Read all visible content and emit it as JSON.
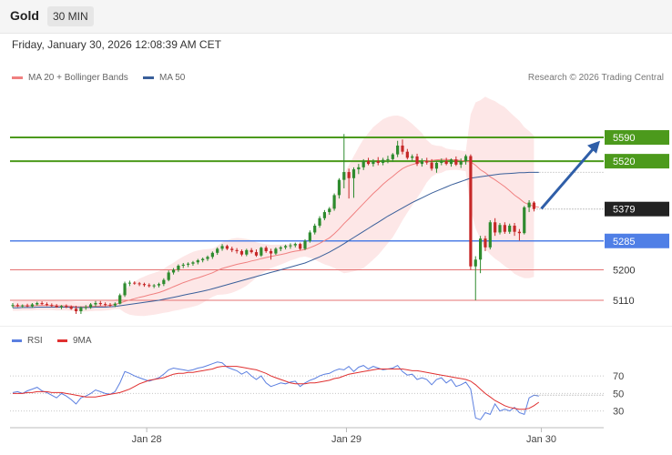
{
  "header": {
    "instrument": "Gold",
    "timeframe": "30 MIN",
    "datetime": "Friday, January 30, 2026 12:08:39 AM CET"
  },
  "legend": {
    "ma20_label": "MA 20 + Bollinger Bands",
    "ma50_label": "MA 50",
    "credit": "Research © 2026 Trading Central"
  },
  "indicator_legend": {
    "rsi_label": "RSI",
    "ma9_label": "9MA"
  },
  "colors": {
    "up": "#2e8b2e",
    "down": "#c62828",
    "ma20": "#f08080",
    "ma50": "#3a5f9a",
    "band_fill": "#fde3e3",
    "resistance": "#4c9a1c",
    "pivot": "#4f7fe6",
    "support": "#e57373",
    "last_price": "#222222",
    "arrow": "#2f5ea8",
    "rsi": "#5b7fe0",
    "ma9": "#e03030"
  },
  "chart_data": [
    {
      "type": "candlestick",
      "ylim": [
        5035,
        5700
      ],
      "xaxis_labels": [
        "Jan 28",
        "Jan 29",
        "Jan 30"
      ],
      "last_price": 5379,
      "levels": [
        {
          "value": 5590,
          "label": "5590",
          "kind": "resistance"
        },
        {
          "value": 5520,
          "label": "5520",
          "kind": "resistance"
        },
        {
          "value": 5285,
          "label": "5285",
          "kind": "pivot"
        },
        {
          "value": 5200,
          "label": "5200",
          "kind": "support"
        },
        {
          "value": 5110,
          "label": "5110",
          "kind": "support"
        }
      ],
      "trend_arrow": {
        "from": 5380,
        "to": 5580
      },
      "candles": [
        {
          "o": 5095,
          "h": 5102,
          "l": 5088,
          "c": 5096
        },
        {
          "o": 5096,
          "h": 5101,
          "l": 5090,
          "c": 5093
        },
        {
          "o": 5093,
          "h": 5098,
          "l": 5088,
          "c": 5095
        },
        {
          "o": 5095,
          "h": 5100,
          "l": 5090,
          "c": 5092
        },
        {
          "o": 5092,
          "h": 5102,
          "l": 5088,
          "c": 5098
        },
        {
          "o": 5098,
          "h": 5106,
          "l": 5094,
          "c": 5102
        },
        {
          "o": 5102,
          "h": 5107,
          "l": 5096,
          "c": 5099
        },
        {
          "o": 5099,
          "h": 5104,
          "l": 5093,
          "c": 5096
        },
        {
          "o": 5096,
          "h": 5101,
          "l": 5090,
          "c": 5094
        },
        {
          "o": 5094,
          "h": 5099,
          "l": 5088,
          "c": 5090
        },
        {
          "o": 5090,
          "h": 5096,
          "l": 5084,
          "c": 5093
        },
        {
          "o": 5093,
          "h": 5098,
          "l": 5087,
          "c": 5091
        },
        {
          "o": 5091,
          "h": 5095,
          "l": 5082,
          "c": 5085
        },
        {
          "o": 5085,
          "h": 5094,
          "l": 5070,
          "c": 5078
        },
        {
          "o": 5078,
          "h": 5092,
          "l": 5070,
          "c": 5088
        },
        {
          "o": 5088,
          "h": 5096,
          "l": 5082,
          "c": 5090
        },
        {
          "o": 5090,
          "h": 5102,
          "l": 5085,
          "c": 5098
        },
        {
          "o": 5098,
          "h": 5108,
          "l": 5092,
          "c": 5102
        },
        {
          "o": 5102,
          "h": 5108,
          "l": 5094,
          "c": 5099
        },
        {
          "o": 5099,
          "h": 5104,
          "l": 5092,
          "c": 5097
        },
        {
          "o": 5097,
          "h": 5102,
          "l": 5090,
          "c": 5095
        },
        {
          "o": 5095,
          "h": 5104,
          "l": 5090,
          "c": 5100
        },
        {
          "o": 5100,
          "h": 5130,
          "l": 5098,
          "c": 5125
        },
        {
          "o": 5125,
          "h": 5165,
          "l": 5120,
          "c": 5160
        },
        {
          "o": 5160,
          "h": 5168,
          "l": 5152,
          "c": 5162
        },
        {
          "o": 5162,
          "h": 5166,
          "l": 5156,
          "c": 5160
        },
        {
          "o": 5160,
          "h": 5164,
          "l": 5152,
          "c": 5158
        },
        {
          "o": 5158,
          "h": 5162,
          "l": 5150,
          "c": 5155
        },
        {
          "o": 5155,
          "h": 5160,
          "l": 5148,
          "c": 5152
        },
        {
          "o": 5152,
          "h": 5158,
          "l": 5146,
          "c": 5154
        },
        {
          "o": 5154,
          "h": 5162,
          "l": 5148,
          "c": 5158
        },
        {
          "o": 5158,
          "h": 5175,
          "l": 5152,
          "c": 5170
        },
        {
          "o": 5170,
          "h": 5198,
          "l": 5166,
          "c": 5192
        },
        {
          "o": 5192,
          "h": 5205,
          "l": 5186,
          "c": 5200
        },
        {
          "o": 5200,
          "h": 5216,
          "l": 5194,
          "c": 5212
        },
        {
          "o": 5212,
          "h": 5220,
          "l": 5205,
          "c": 5215
        },
        {
          "o": 5215,
          "h": 5222,
          "l": 5208,
          "c": 5218
        },
        {
          "o": 5218,
          "h": 5226,
          "l": 5212,
          "c": 5222
        },
        {
          "o": 5222,
          "h": 5232,
          "l": 5216,
          "c": 5228
        },
        {
          "o": 5228,
          "h": 5236,
          "l": 5222,
          "c": 5232
        },
        {
          "o": 5232,
          "h": 5242,
          "l": 5226,
          "c": 5238
        },
        {
          "o": 5238,
          "h": 5254,
          "l": 5232,
          "c": 5250
        },
        {
          "o": 5250,
          "h": 5266,
          "l": 5244,
          "c": 5262
        },
        {
          "o": 5262,
          "h": 5276,
          "l": 5256,
          "c": 5270
        },
        {
          "o": 5270,
          "h": 5274,
          "l": 5258,
          "c": 5262
        },
        {
          "o": 5262,
          "h": 5268,
          "l": 5252,
          "c": 5258
        },
        {
          "o": 5258,
          "h": 5264,
          "l": 5248,
          "c": 5255
        },
        {
          "o": 5255,
          "h": 5260,
          "l": 5240,
          "c": 5245
        },
        {
          "o": 5245,
          "h": 5262,
          "l": 5240,
          "c": 5258
        },
        {
          "o": 5258,
          "h": 5264,
          "l": 5248,
          "c": 5252
        },
        {
          "o": 5252,
          "h": 5260,
          "l": 5238,
          "c": 5242
        },
        {
          "o": 5242,
          "h": 5268,
          "l": 5238,
          "c": 5265
        },
        {
          "o": 5265,
          "h": 5270,
          "l": 5250,
          "c": 5255
        },
        {
          "o": 5255,
          "h": 5262,
          "l": 5230,
          "c": 5248
        },
        {
          "o": 5248,
          "h": 5266,
          "l": 5244,
          "c": 5262
        },
        {
          "o": 5262,
          "h": 5270,
          "l": 5255,
          "c": 5266
        },
        {
          "o": 5266,
          "h": 5274,
          "l": 5260,
          "c": 5270
        },
        {
          "o": 5270,
          "h": 5278,
          "l": 5262,
          "c": 5272
        },
        {
          "o": 5272,
          "h": 5280,
          "l": 5266,
          "c": 5276
        },
        {
          "o": 5276,
          "h": 5280,
          "l": 5258,
          "c": 5262
        },
        {
          "o": 5262,
          "h": 5290,
          "l": 5258,
          "c": 5285
        },
        {
          "o": 5285,
          "h": 5316,
          "l": 5280,
          "c": 5310
        },
        {
          "o": 5310,
          "h": 5336,
          "l": 5304,
          "c": 5330
        },
        {
          "o": 5330,
          "h": 5358,
          "l": 5324,
          "c": 5352
        },
        {
          "o": 5352,
          "h": 5376,
          "l": 5346,
          "c": 5370
        },
        {
          "o": 5370,
          "h": 5385,
          "l": 5362,
          "c": 5380
        },
        {
          "o": 5380,
          "h": 5425,
          "l": 5374,
          "c": 5420
        },
        {
          "o": 5420,
          "h": 5470,
          "l": 5410,
          "c": 5465
        },
        {
          "o": 5465,
          "h": 5600,
          "l": 5440,
          "c": 5488
        },
        {
          "o": 5488,
          "h": 5498,
          "l": 5410,
          "c": 5470
        },
        {
          "o": 5470,
          "h": 5502,
          "l": 5412,
          "c": 5496
        },
        {
          "o": 5496,
          "h": 5512,
          "l": 5482,
          "c": 5502
        },
        {
          "o": 5502,
          "h": 5526,
          "l": 5494,
          "c": 5520
        },
        {
          "o": 5520,
          "h": 5530,
          "l": 5508,
          "c": 5512
        },
        {
          "o": 5512,
          "h": 5526,
          "l": 5504,
          "c": 5520
        },
        {
          "o": 5520,
          "h": 5532,
          "l": 5508,
          "c": 5515
        },
        {
          "o": 5515,
          "h": 5530,
          "l": 5508,
          "c": 5524
        },
        {
          "o": 5524,
          "h": 5536,
          "l": 5514,
          "c": 5526
        },
        {
          "o": 5526,
          "h": 5544,
          "l": 5518,
          "c": 5540
        },
        {
          "o": 5540,
          "h": 5580,
          "l": 5532,
          "c": 5566
        },
        {
          "o": 5566,
          "h": 5584,
          "l": 5540,
          "c": 5548
        },
        {
          "o": 5548,
          "h": 5556,
          "l": 5525,
          "c": 5530
        },
        {
          "o": 5530,
          "h": 5540,
          "l": 5520,
          "c": 5534
        },
        {
          "o": 5534,
          "h": 5542,
          "l": 5506,
          "c": 5512
        },
        {
          "o": 5512,
          "h": 5528,
          "l": 5504,
          "c": 5520
        },
        {
          "o": 5520,
          "h": 5530,
          "l": 5510,
          "c": 5516
        },
        {
          "o": 5516,
          "h": 5526,
          "l": 5492,
          "c": 5498
        },
        {
          "o": 5498,
          "h": 5520,
          "l": 5486,
          "c": 5515
        },
        {
          "o": 5515,
          "h": 5528,
          "l": 5508,
          "c": 5520
        },
        {
          "o": 5520,
          "h": 5530,
          "l": 5508,
          "c": 5512
        },
        {
          "o": 5512,
          "h": 5528,
          "l": 5504,
          "c": 5525
        },
        {
          "o": 5525,
          "h": 5534,
          "l": 5506,
          "c": 5510
        },
        {
          "o": 5510,
          "h": 5528,
          "l": 5500,
          "c": 5520
        },
        {
          "o": 5520,
          "h": 5540,
          "l": 5510,
          "c": 5535
        },
        {
          "o": 5535,
          "h": 5540,
          "l": 5200,
          "c": 5210
        },
        {
          "o": 5210,
          "h": 5240,
          "l": 5110,
          "c": 5230
        },
        {
          "o": 5230,
          "h": 5300,
          "l": 5190,
          "c": 5292
        },
        {
          "o": 5292,
          "h": 5300,
          "l": 5255,
          "c": 5266
        },
        {
          "o": 5266,
          "h": 5346,
          "l": 5260,
          "c": 5340
        },
        {
          "o": 5340,
          "h": 5352,
          "l": 5300,
          "c": 5310
        },
        {
          "o": 5310,
          "h": 5338,
          "l": 5304,
          "c": 5332
        },
        {
          "o": 5332,
          "h": 5340,
          "l": 5306,
          "c": 5312
        },
        {
          "o": 5312,
          "h": 5336,
          "l": 5306,
          "c": 5330
        },
        {
          "o": 5330,
          "h": 5338,
          "l": 5300,
          "c": 5312
        },
        {
          "o": 5312,
          "h": 5320,
          "l": 5286,
          "c": 5308
        },
        {
          "o": 5308,
          "h": 5388,
          "l": 5304,
          "c": 5384
        },
        {
          "o": 5384,
          "h": 5405,
          "l": 5370,
          "c": 5398
        },
        {
          "o": 5398,
          "h": 5402,
          "l": 5372,
          "c": 5379
        }
      ],
      "ma20": [
        5093,
        5093,
        5094,
        5094,
        5094,
        5095,
        5095,
        5095,
        5095,
        5094,
        5094,
        5094,
        5093,
        5091,
        5091,
        5091,
        5092,
        5093,
        5093,
        5094,
        5095,
        5098,
        5102,
        5107,
        5111,
        5115,
        5119,
        5122,
        5126,
        5129,
        5133,
        5138,
        5144,
        5150,
        5156,
        5162,
        5167,
        5172,
        5176,
        5181,
        5186,
        5191,
        5198,
        5204,
        5208,
        5212,
        5216,
        5219,
        5222,
        5226,
        5229,
        5233,
        5236,
        5239,
        5242,
        5245,
        5248,
        5252,
        5255,
        5257,
        5260,
        5265,
        5271,
        5278,
        5286,
        5294,
        5306,
        5320,
        5336,
        5350,
        5365,
        5380,
        5395,
        5410,
        5425,
        5438,
        5452,
        5464,
        5475,
        5487,
        5498,
        5505,
        5510,
        5514,
        5518,
        5520,
        5522,
        5524,
        5525,
        5525,
        5524,
        5524,
        5522,
        5520,
        5518,
        5508,
        5495,
        5486,
        5474,
        5465,
        5455,
        5445,
        5433,
        5420,
        5410,
        5398,
        5392,
        5387,
        5384
      ],
      "ma50": [
        5088,
        5088,
        5089,
        5089,
        5089,
        5090,
        5090,
        5090,
        5090,
        5090,
        5090,
        5090,
        5090,
        5089,
        5089,
        5089,
        5089,
        5090,
        5090,
        5090,
        5091,
        5092,
        5094,
        5096,
        5098,
        5100,
        5102,
        5104,
        5106,
        5108,
        5110,
        5113,
        5116,
        5119,
        5122,
        5125,
        5128,
        5131,
        5134,
        5137,
        5140,
        5144,
        5148,
        5152,
        5156,
        5160,
        5164,
        5168,
        5172,
        5176,
        5180,
        5184,
        5188,
        5192,
        5196,
        5200,
        5204,
        5208,
        5212,
        5216,
        5220,
        5226,
        5232,
        5238,
        5245,
        5252,
        5260,
        5268,
        5277,
        5286,
        5295,
        5304,
        5313,
        5322,
        5331,
        5340,
        5349,
        5358,
        5366,
        5374,
        5382,
        5390,
        5398,
        5405,
        5412,
        5419,
        5426,
        5432,
        5438,
        5444,
        5450,
        5455,
        5460,
        5465,
        5470,
        5472,
        5474,
        5476,
        5478,
        5480,
        5482,
        5483,
        5484,
        5485,
        5486,
        5486,
        5487,
        5487,
        5487
      ]
    },
    {
      "type": "line",
      "ylim": [
        15,
        92
      ],
      "yticks": [
        70,
        50,
        30
      ],
      "series": [
        {
          "name": "RSI",
          "values": [
            51,
            52,
            50,
            53,
            55,
            57,
            53,
            51,
            48,
            45,
            50,
            47,
            43,
            38,
            45,
            47,
            50,
            54,
            52,
            50,
            49,
            52,
            62,
            75,
            73,
            70,
            68,
            66,
            64,
            66,
            68,
            72,
            77,
            79,
            78,
            77,
            76,
            77,
            79,
            80,
            82,
            84,
            86,
            85,
            80,
            78,
            76,
            72,
            75,
            70,
            66,
            70,
            62,
            58,
            60,
            62,
            61,
            63,
            64,
            58,
            62,
            65,
            67,
            70,
            72,
            73,
            76,
            78,
            77,
            81,
            75,
            80,
            82,
            78,
            81,
            79,
            77,
            78,
            79,
            82,
            75,
            71,
            72,
            66,
            68,
            66,
            60,
            66,
            68,
            62,
            66,
            58,
            60,
            63,
            55,
            22,
            20,
            28,
            26,
            38,
            30,
            32,
            30,
            34,
            28,
            26,
            45,
            48,
            47
          ]
        },
        {
          "name": "9MA",
          "values": [
            50,
            50,
            50,
            51,
            51,
            52,
            52,
            52,
            51,
            51,
            51,
            50,
            49,
            48,
            47,
            46,
            46,
            46,
            47,
            48,
            49,
            50,
            51,
            53,
            55,
            58,
            61,
            63,
            65,
            66,
            67,
            68,
            70,
            72,
            73,
            73,
            74,
            74,
            75,
            76,
            77,
            78,
            80,
            81,
            81,
            81,
            81,
            80,
            79,
            78,
            77,
            75,
            73,
            70,
            68,
            66,
            64,
            62,
            61,
            61,
            61,
            62,
            62,
            63,
            64,
            65,
            67,
            68,
            70,
            72,
            73,
            74,
            75,
            76,
            77,
            78,
            78,
            78,
            78,
            78,
            78,
            77,
            76,
            76,
            75,
            74,
            73,
            72,
            71,
            70,
            69,
            68,
            67,
            66,
            64,
            60,
            55,
            50,
            46,
            42,
            39,
            36,
            34,
            33,
            32,
            32,
            33,
            36,
            40
          ]
        }
      ]
    }
  ]
}
